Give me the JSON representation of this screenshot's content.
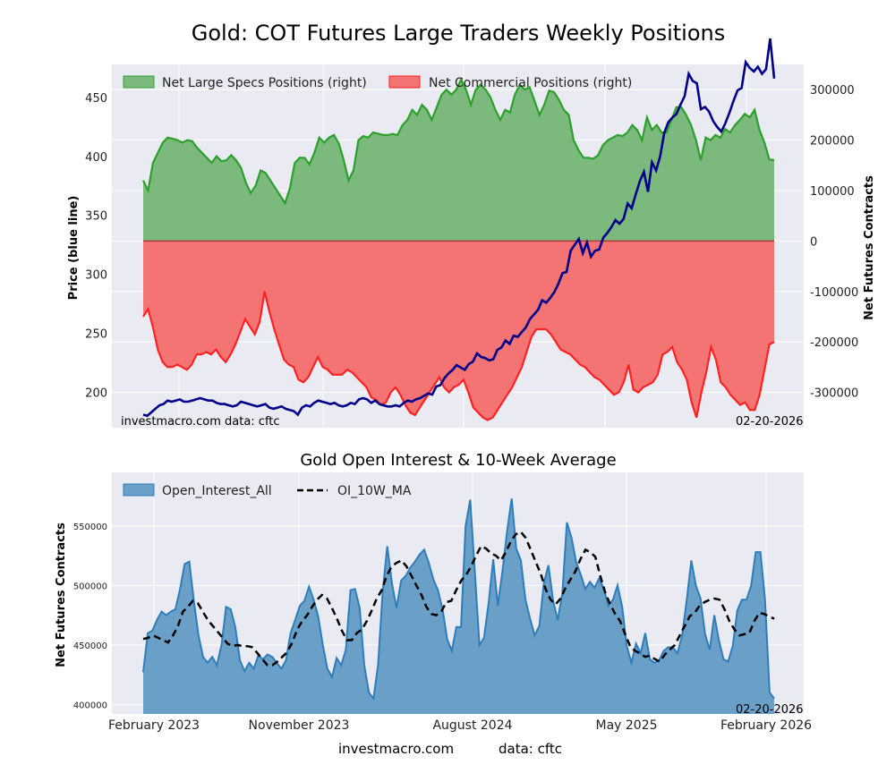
{
  "chart_data": [
    {
      "type": "area",
      "title": "Gold: COT Futures Large Traders Weekly Positions",
      "ylabel_left": "Price (blue line)",
      "ylabel_right": "Net Futures Contracts",
      "ylim_left": [
        170,
        478
      ],
      "ylim_right": [
        -370000,
        350000
      ],
      "yticks_left": [
        "200",
        "250",
        "300",
        "350",
        "400",
        "450"
      ],
      "yticks_right": [
        "-300000",
        "-200000",
        "-100000",
        "0",
        "100000",
        "200000",
        "300000"
      ],
      "legend": {
        "placement": "top",
        "specs": "Net Large Specs Positions (right)",
        "comm": "Net Commercial Positions (right)"
      },
      "note_left": "investmacro.com    data: cftc",
      "note_right": "02-20-2026",
      "colors": {
        "specs_fill": "#7cb97c",
        "specs_line": "#2ca02c",
        "comm_fill": "#f47373",
        "comm_line": "#ff2222",
        "price": "#00008b"
      },
      "week_labels": [
        "2023-01",
        "2026-02"
      ],
      "net_specs": [
        120000,
        100000,
        155000,
        175000,
        195000,
        205000,
        203000,
        200000,
        195000,
        200000,
        198000,
        185000,
        175000,
        165000,
        155000,
        168000,
        158000,
        160000,
        170000,
        160000,
        145000,
        115000,
        95000,
        110000,
        140000,
        135000,
        120000,
        105000,
        90000,
        75000,
        105000,
        155000,
        165000,
        165000,
        152000,
        175000,
        205000,
        195000,
        205000,
        210000,
        193000,
        160000,
        120000,
        140000,
        200000,
        208000,
        205000,
        215000,
        213000,
        210000,
        210000,
        212000,
        210000,
        230000,
        240000,
        260000,
        250000,
        270000,
        260000,
        240000,
        265000,
        290000,
        300000,
        290000,
        300000,
        320000,
        300000,
        270000,
        300000,
        310000,
        300000,
        285000,
        260000,
        240000,
        260000,
        255000,
        290000,
        310000,
        300000,
        305000,
        278000,
        250000,
        270000,
        298000,
        295000,
        280000,
        260000,
        250000,
        200000,
        180000,
        165000,
        165000,
        163000,
        170000,
        190000,
        200000,
        205000,
        210000,
        208000,
        215000,
        230000,
        220000,
        200000,
        245000,
        220000,
        230000,
        215000,
        215000,
        240000,
        265000,
        265000,
        250000,
        230000,
        200000,
        160000,
        205000,
        200000,
        210000,
        205000,
        222000,
        215000,
        230000,
        240000,
        252000,
        245000,
        260000,
        220000,
        195000,
        162000,
        160000
      ],
      "net_comm": [
        -150000,
        -135000,
        -170000,
        -215000,
        -240000,
        -250000,
        -250000,
        -245000,
        -250000,
        -255000,
        -245000,
        -225000,
        -225000,
        -220000,
        -225000,
        -215000,
        -230000,
        -240000,
        -225000,
        -205000,
        -180000,
        -155000,
        -170000,
        -185000,
        -160000,
        -100000,
        -140000,
        -175000,
        -205000,
        -235000,
        -245000,
        -250000,
        -275000,
        -280000,
        -270000,
        -250000,
        -230000,
        -250000,
        -255000,
        -265000,
        -265000,
        -265000,
        -255000,
        -260000,
        -270000,
        -280000,
        -290000,
        -310000,
        -315000,
        -325000,
        -320000,
        -300000,
        -290000,
        -305000,
        -325000,
        -340000,
        -345000,
        -330000,
        -315000,
        -300000,
        -285000,
        -270000,
        -290000,
        -300000,
        -290000,
        -285000,
        -275000,
        -300000,
        -330000,
        -340000,
        -350000,
        -355000,
        -350000,
        -335000,
        -320000,
        -305000,
        -290000,
        -270000,
        -250000,
        -220000,
        -190000,
        -175000,
        -175000,
        -175000,
        -185000,
        -200000,
        -215000,
        -220000,
        -225000,
        -235000,
        -245000,
        -250000,
        -260000,
        -270000,
        -275000,
        -285000,
        -295000,
        -305000,
        -300000,
        -280000,
        -245000,
        -295000,
        -300000,
        -290000,
        -285000,
        -280000,
        -265000,
        -225000,
        -220000,
        -210000,
        -240000,
        -255000,
        -275000,
        -320000,
        -350000,
        -300000,
        -260000,
        -210000,
        -235000,
        -280000,
        -290000,
        -305000,
        -315000,
        -325000,
        -320000,
        -335000,
        -335000,
        -305000,
        -255000,
        -205000,
        -200000
      ],
      "price": [
        181,
        180,
        183,
        186,
        189,
        190,
        193,
        192,
        193,
        194,
        192,
        192,
        193,
        194,
        195,
        194,
        193,
        193,
        191,
        190,
        190,
        189,
        188,
        189,
        192,
        191,
        190,
        189,
        188,
        189,
        190,
        187,
        186,
        187,
        188,
        186,
        185,
        184,
        181,
        187,
        189,
        188,
        191,
        193,
        192,
        191,
        190,
        191,
        189,
        188,
        189,
        191,
        190,
        194,
        195,
        194,
        191,
        193,
        190,
        189,
        188,
        188,
        189,
        188,
        191,
        193,
        192,
        194,
        195,
        197,
        199,
        198,
        205,
        206,
        212,
        216,
        219,
        223,
        221,
        219,
        224,
        226,
        233,
        230,
        229,
        227,
        228,
        236,
        238,
        244,
        241,
        248,
        247,
        251,
        255,
        262,
        266,
        270,
        278,
        276,
        280,
        285,
        292,
        301,
        302,
        320,
        325,
        330,
        318,
        327,
        315,
        320,
        321,
        331,
        335,
        340,
        346,
        343,
        347,
        360,
        356,
        368,
        379,
        387,
        370,
        395,
        388,
        400,
        420,
        429,
        433,
        436,
        444,
        451,
        470,
        464,
        462,
        440,
        442,
        438,
        430,
        425,
        421,
        428,
        437,
        447,
        456,
        458,
        480,
        475,
        472,
        476,
        470,
        474,
        500,
        466
      ],
      "price_labels_left": [
        "200",
        "250",
        "300",
        "350",
        "400",
        "450"
      ]
    },
    {
      "type": "area",
      "title": "Gold Open Interest & 10-Week Average",
      "ylabel": "Net Futures Contracts",
      "ylim": [
        392000,
        595000
      ],
      "yticks": [
        "400000",
        "450000",
        "500000",
        "550000"
      ],
      "xticks": [
        "February 2023",
        "November 2023",
        "August 2024",
        "May 2025",
        "February 2026"
      ],
      "legend": {
        "placement": "top-left",
        "oi": "Open_Interest_All",
        "ma": "OI_10W_MA"
      },
      "note_right": "02-20-2026",
      "colors": {
        "oi_fill": "#6aa0c8",
        "oi_line": "#2e7dbb",
        "ma_line": "#000000"
      },
      "open_interest": [
        427000,
        460000,
        462000,
        471000,
        478000,
        475000,
        478000,
        480000,
        497000,
        518000,
        520000,
        487000,
        458000,
        440000,
        435000,
        440000,
        433000,
        450000,
        482000,
        480000,
        465000,
        437000,
        428000,
        435000,
        430000,
        441000,
        438000,
        442000,
        440000,
        435000,
        430000,
        437000,
        460000,
        471000,
        483000,
        487000,
        499000,
        488000,
        474000,
        450000,
        430000,
        423000,
        439000,
        433000,
        446000,
        496000,
        497000,
        481000,
        433000,
        410000,
        405000,
        433000,
        495000,
        533000,
        502000,
        481000,
        504000,
        508000,
        515000,
        520000,
        526000,
        530000,
        519000,
        505000,
        496000,
        480000,
        455000,
        445000,
        465000,
        465000,
        550000,
        572000,
        512000,
        450000,
        456000,
        485000,
        522000,
        483000,
        512000,
        545000,
        573000,
        531000,
        521000,
        488000,
        472000,
        458000,
        466000,
        502000,
        517000,
        487000,
        471000,
        493000,
        553000,
        540000,
        520000,
        509000,
        497000,
        503000,
        498000,
        506000,
        497000,
        483000,
        488000,
        500000,
        482000,
        449000,
        435000,
        451000,
        443000,
        460000,
        438000,
        435000,
        437000,
        445000,
        448000,
        448000,
        443000,
        458000,
        487000,
        521000,
        500000,
        489000,
        459000,
        446000,
        475000,
        454000,
        438000,
        436000,
        449000,
        479000,
        488000,
        488000,
        500000,
        528000,
        528000,
        489000,
        410000,
        405000
      ],
      "oi_ma": [
        455000,
        456000,
        458000,
        456000,
        454000,
        452000,
        458000,
        466000,
        478000,
        482000,
        487000,
        485000,
        478000,
        471000,
        466000,
        461000,
        456000,
        451000,
        449000,
        450000,
        449000,
        449000,
        448000,
        443000,
        438000,
        433000,
        433000,
        436000,
        440000,
        444000,
        452000,
        463000,
        470000,
        475000,
        482000,
        488000,
        492000,
        489000,
        481000,
        472000,
        462000,
        454000,
        454000,
        460000,
        463000,
        470000,
        479000,
        489000,
        496000,
        508000,
        516000,
        519000,
        521000,
        516000,
        508000,
        500000,
        492000,
        482000,
        476000,
        475000,
        478000,
        486000,
        487000,
        496000,
        504000,
        509000,
        516000,
        525000,
        533000,
        531000,
        527000,
        525000,
        521000,
        528000,
        537000,
        543000,
        545000,
        540000,
        530000,
        520000,
        510000,
        497000,
        488000,
        484000,
        489000,
        498000,
        505000,
        512000,
        522000,
        530000,
        528000,
        524000,
        508000,
        494000,
        484000,
        476000,
        470000,
        459000,
        449000,
        445000,
        443000,
        440000,
        441000,
        438000,
        436000,
        442000,
        446000,
        450000,
        458000,
        466000,
        474000,
        477000,
        483000,
        486000,
        488000,
        489000,
        488000,
        480000,
        470000,
        463000,
        458000,
        459000,
        460000,
        470000,
        477000,
        476000,
        474000,
        472000
      ]
    }
  ],
  "footer": {
    "left": "investmacro.com",
    "right": "data: cftc"
  }
}
